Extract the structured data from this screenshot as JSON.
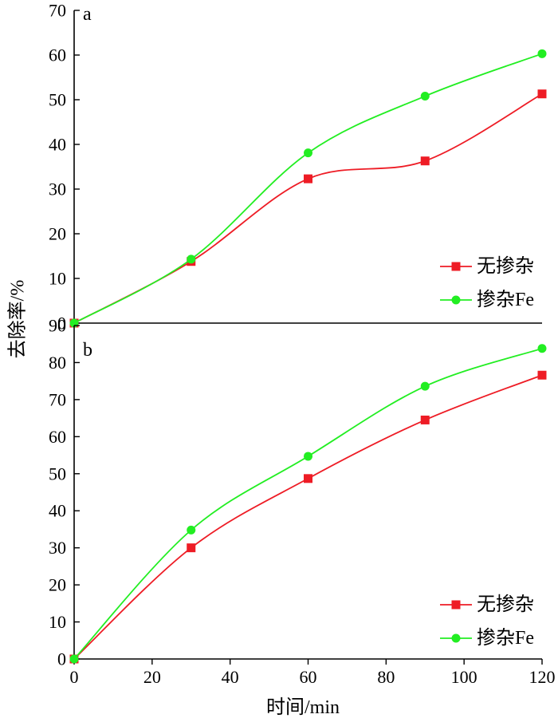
{
  "y_axis_title": "去除率/%",
  "x_axis_title": "时间/min",
  "chart_data": [
    {
      "type": "line",
      "panel": "a",
      "x": [
        0,
        30,
        60,
        90,
        120
      ],
      "ylim": [
        0,
        70
      ],
      "y_ticks": [
        "0",
        "10",
        "20",
        "30",
        "40",
        "50",
        "60",
        "70"
      ],
      "series": [
        {
          "name": "无掺杂",
          "marker": "square",
          "color": "#ee1c25",
          "values": [
            0,
            13.8,
            32.3,
            36.3,
            51.3
          ]
        },
        {
          "name": "掺杂Fe",
          "marker": "circle",
          "color": "#22ee22",
          "values": [
            0,
            14.3,
            38.1,
            50.8,
            60.3
          ]
        }
      ],
      "legend": "right",
      "grid": false
    },
    {
      "type": "line",
      "panel": "b",
      "x": [
        0,
        30,
        60,
        90,
        120
      ],
      "xlim": [
        0,
        120
      ],
      "x_ticks": [
        "0",
        "20",
        "40",
        "60",
        "80",
        "100",
        "120"
      ],
      "ylim": [
        0,
        90
      ],
      "y_ticks": [
        "0",
        "10",
        "20",
        "30",
        "40",
        "50",
        "60",
        "70",
        "80",
        "90"
      ],
      "series": [
        {
          "name": "无掺杂",
          "marker": "square",
          "color": "#ee1c25",
          "values": [
            0,
            30,
            48.7,
            64.5,
            76.6
          ]
        },
        {
          "name": "掺杂Fe",
          "marker": "circle",
          "color": "#22ee22",
          "values": [
            0,
            34.8,
            54.7,
            73.6,
            83.8
          ]
        }
      ],
      "legend": "bottom-right",
      "grid": false
    }
  ]
}
